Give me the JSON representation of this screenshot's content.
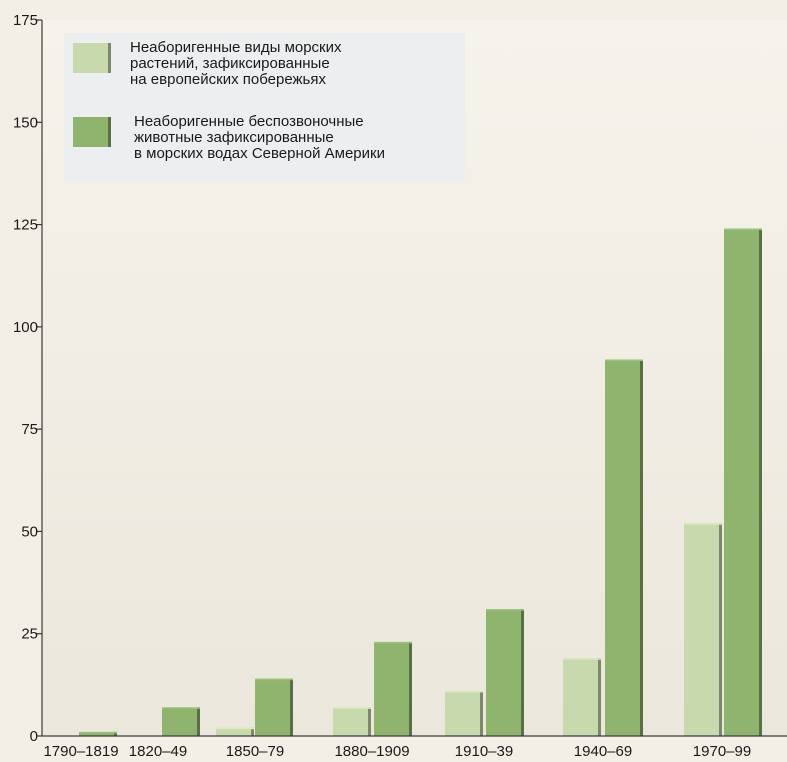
{
  "chart_data": {
    "type": "bar",
    "title": "",
    "xlabel": "",
    "ylabel": "",
    "ylim": [
      0,
      175
    ],
    "yticks": [
      0,
      25,
      50,
      75,
      100,
      125,
      150,
      175
    ],
    "grid": false,
    "legend_position": "top-left",
    "categories": [
      "1790–1819",
      "1820–49",
      "1850–79",
      "1880–1909",
      "1910–39",
      "1940–69",
      "1970–99"
    ],
    "series": [
      {
        "name": "Неаборигенные виды морских растений, зафиксированные на европейских побережьях",
        "legend_lines": [
          "Неаборигенные виды морских",
          "растений, зафиксированные",
          "на европейских побережьях"
        ],
        "values": [
          0,
          0,
          2,
          7,
          11,
          19,
          52
        ],
        "color": "#c8d9ae"
      },
      {
        "name": "Неаборигенные беспозвоночные животные зафиксированные в морских водах Северной Америки",
        "legend_lines": [
          "Неаборигенные беспозвоночные",
          "животные зафиксированные",
          "в морских водах Северной Америки"
        ],
        "values": [
          1,
          7,
          14,
          23,
          31,
          92,
          124
        ],
        "color": "#8fb46e"
      }
    ]
  }
}
